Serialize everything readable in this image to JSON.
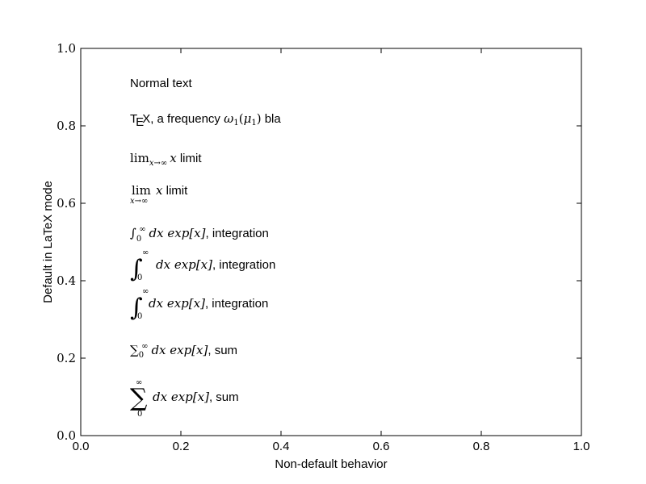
{
  "chart_data": {
    "type": "table",
    "title": "",
    "xlabel": "Non-default behavior",
    "ylabel": "Default in LaTeX mode",
    "xlim": [
      0.0,
      1.0
    ],
    "ylim": [
      0.0,
      1.0
    ],
    "x_ticks": [
      "0.0",
      "0.2",
      "0.4",
      "0.6",
      "0.8",
      "1.0"
    ],
    "y_ticks": [
      "0.0",
      "0.2",
      "0.4",
      "0.6",
      "0.8",
      "1.0"
    ],
    "grid": false,
    "annotations": [
      {
        "x": 0.1,
        "y": 0.9,
        "text": "Normal text"
      },
      {
        "x": 0.1,
        "y": 0.8,
        "tex_T": "T",
        "tex_E": "E",
        "tex_X": "X",
        "text": ", a frequency ",
        "math_var": "ω",
        "math_sub1": "1",
        "math_paren_open": "(",
        "math_var2": "μ",
        "math_sub2": "1",
        "math_paren_close": ")",
        "text2": " bla"
      },
      {
        "x": 0.1,
        "y": 0.7,
        "op": "lim",
        "sub": "x→∞",
        "var": "x",
        "text": " limit"
      },
      {
        "x": 0.1,
        "y": 0.6,
        "op": "lim",
        "sub": "x→∞",
        "var": "x",
        "text": " limit"
      },
      {
        "x": 0.1,
        "y": 0.5,
        "op": "∫",
        "lower": "0",
        "upper": "∞",
        "expr": "dx exp[x]",
        "text": ", integration"
      },
      {
        "x": 0.1,
        "y": 0.4,
        "op": "∫",
        "lower": "0",
        "upper": "∞",
        "expr": "dx exp[x]",
        "text": ", integration"
      },
      {
        "x": 0.1,
        "y": 0.3,
        "op": "∫",
        "lower": "0",
        "upper": "∞",
        "expr": "dx exp[x]",
        "text": ", integration"
      },
      {
        "x": 0.1,
        "y": 0.2,
        "op": "∑",
        "lower": "0",
        "upper": "∞",
        "expr": "dx exp[x]",
        "text": ", sum"
      },
      {
        "x": 0.1,
        "y": 0.1,
        "op": "∑",
        "lower": "0",
        "upper": "∞",
        "expr": "dx exp[x]",
        "text": ", sum"
      }
    ]
  }
}
